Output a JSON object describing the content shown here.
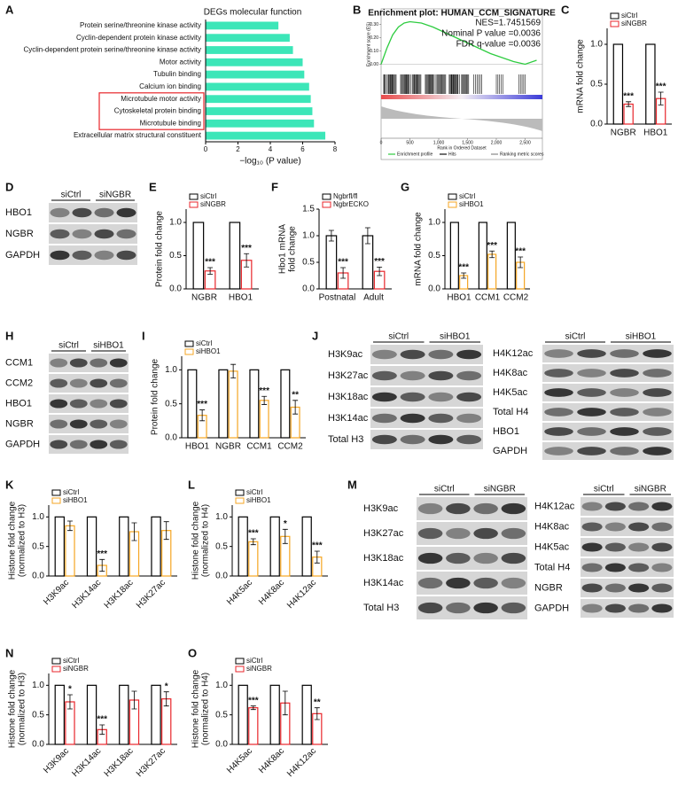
{
  "chart_data": [
    {
      "type": "barh",
      "label": "A",
      "title": "DEGs molecular function",
      "categories": [
        "Protein serine/threonine kinase activity",
        "Cyclin-dependent protein kinase activity",
        "Cyclin-dependent protein serine/threonine kinase activity",
        "Motor activity",
        "Tubulin binding",
        "Calcium ion binding",
        "Microtubule motor activity",
        "Cytoskeletal protein binding",
        "Microtubule binding",
        "Extracellular matrix structural constituent"
      ],
      "values": [
        4.5,
        5.2,
        5.4,
        6.0,
        6.1,
        6.4,
        6.5,
        6.6,
        6.7,
        7.4
      ],
      "color": "#3ce6b8",
      "highlight": [
        "Microtubule motor activity",
        "Cytoskeletal protein binding",
        "Microtubule binding"
      ],
      "highlight_color": "#e8262b",
      "xlim": [
        0,
        8
      ],
      "xticks": [
        0,
        2,
        4,
        6,
        8
      ],
      "xlabel": "−log₁₀ (P value)"
    },
    {
      "type": "gsea",
      "label": "B",
      "title": "Enrichment plot: HUMAN_CCM_SIGNATURE",
      "annotations": [
        "NES=1.7451569",
        "Nominal P value =0.0036",
        "FDR q-value =0.0036"
      ],
      "x": [
        0,
        100,
        200,
        300,
        400,
        500,
        700,
        900,
        1100,
        1300,
        1500,
        1700,
        1900,
        2100,
        2300,
        2500,
        2700
      ],
      "y": [
        0,
        0.12,
        0.22,
        0.28,
        0.31,
        0.32,
        0.31,
        0.28,
        0.24,
        0.2,
        0.16,
        0.12,
        0.08,
        0.05,
        0.02,
        0.0,
        0.03
      ],
      "color": "#2ecc40",
      "xlim": [
        0,
        2800
      ],
      "xticks": [
        0,
        500,
        {
          "value": 1000,
          "label": "1,000"
        },
        {
          "value": 1500,
          "label": "1,500"
        },
        {
          "value": 2000,
          "label": "2,000"
        },
        {
          "value": 2500,
          "label": "2,500"
        }
      ],
      "ylim": [
        -0.05,
        0.35
      ],
      "yticks": [
        {
          "value": 0,
          "label": "0.00"
        },
        {
          "value": 0.1,
          "label": "0.10"
        },
        {
          "value": 0.2,
          "label": "0.20"
        },
        {
          "value": 0.3,
          "label": "0.30"
        }
      ],
      "ylabel": "Enrichment score (ES)",
      "xlabel": "Rank in Ordered Dataset",
      "legend": [
        "Enrichment profile",
        "Hits",
        "Ranking metric scores"
      ]
    },
    {
      "type": "bar",
      "label": "C",
      "ylabel": [
        "mRNA fold change"
      ],
      "categories": [
        "NGBR",
        "HBO1"
      ],
      "series": [
        {
          "name": "siCtrl",
          "color": "#000000",
          "values": [
            1,
            1
          ]
        },
        {
          "name": "siNGBR",
          "color": "#e8262b",
          "values": [
            0.25,
            0.32
          ],
          "errors": [
            0.03,
            0.08
          ],
          "annotations": [
            "***",
            "***"
          ]
        }
      ],
      "ylim": [
        0,
        1.2
      ],
      "yticks": [
        {
          "value": 0,
          "label": "0.0"
        },
        {
          "value": 0.5,
          "label": "0.5"
        },
        {
          "value": 1,
          "label": "1.0"
        }
      ]
    },
    {
      "type": "bar",
      "label": "E",
      "ylabel": [
        "Protein fold change"
      ],
      "categories": [
        "NGBR",
        "HBO1"
      ],
      "series": [
        {
          "name": "siCtrl",
          "color": "#000000",
          "values": [
            1,
            1
          ]
        },
        {
          "name": "siNGBR",
          "color": "#e8262b",
          "values": [
            0.27,
            0.43
          ],
          "errors": [
            0.05,
            0.1
          ],
          "annotations": [
            "***",
            "***"
          ]
        }
      ],
      "ylim": [
        0,
        1.2
      ],
      "yticks": [
        {
          "value": 0,
          "label": "0.0"
        },
        {
          "value": 0.5,
          "label": "0.5"
        },
        {
          "value": 1,
          "label": "1.0"
        }
      ]
    },
    {
      "type": "bar",
      "label": "F",
      "ylabel": [
        "Hbo1 mRNA",
        "fold change"
      ],
      "categories": [
        "Postnatal",
        "Adult"
      ],
      "series": [
        {
          "name": "Ngbrfl/fl",
          "color": "#000000",
          "values": [
            1,
            1
          ],
          "errors": [
            0.1,
            0.15
          ]
        },
        {
          "name": "NgbrECKO",
          "color": "#e8262b",
          "values": [
            0.3,
            0.33
          ],
          "errors": [
            0.1,
            0.08
          ],
          "annotations": [
            "***",
            "***"
          ]
        }
      ],
      "ylim": [
        0,
        1.5
      ],
      "yticks": [
        {
          "value": 0,
          "label": "0.0"
        },
        {
          "value": 0.5,
          "label": "0.5"
        },
        {
          "value": 1,
          "label": "1.0"
        },
        {
          "value": 1.5,
          "label": "1.5"
        }
      ]
    },
    {
      "type": "bar",
      "label": "G",
      "ylabel": [
        "mRNA fold change"
      ],
      "categories": [
        "HBO1",
        "CCM1",
        "CCM2"
      ],
      "series": [
        {
          "name": "siCtrl",
          "color": "#000000",
          "values": [
            1,
            1,
            1
          ]
        },
        {
          "name": "siHBO1",
          "color": "#f5a623",
          "values": [
            0.2,
            0.52,
            0.4
          ],
          "errors": [
            0.04,
            0.05,
            0.08
          ],
          "annotations": [
            "***",
            "***",
            "***"
          ]
        }
      ],
      "ylim": [
        0,
        1.2
      ],
      "yticks": [
        {
          "value": 0,
          "label": "0.0"
        },
        {
          "value": 0.5,
          "label": "0.5"
        },
        {
          "value": 1,
          "label": "1.0"
        }
      ]
    },
    {
      "type": "bar",
      "label": "I",
      "ylabel": [
        "Protein fold change"
      ],
      "categories": [
        "HBO1",
        "NGBR",
        "CCM1",
        "CCM2"
      ],
      "series": [
        {
          "name": "siCtrl",
          "color": "#000000",
          "values": [
            1,
            1,
            1,
            1
          ]
        },
        {
          "name": "siHBO1",
          "color": "#f5a623",
          "values": [
            0.33,
            0.98,
            0.55,
            0.45
          ],
          "errors": [
            0.08,
            0.1,
            0.06,
            0.1
          ],
          "annotations": [
            "***",
            null,
            "***",
            "**"
          ]
        }
      ],
      "ylim": [
        0,
        1.2
      ],
      "yticks": [
        {
          "value": 0,
          "label": "0.0"
        },
        {
          "value": 0.5,
          "label": "0.5"
        },
        {
          "value": 1,
          "label": "1.0"
        }
      ]
    },
    {
      "type": "bar",
      "label": "K",
      "ylabel": [
        "Histone fold change",
        "(normalized to H3)"
      ],
      "categories": [
        "H3K9ac",
        "H3K14ac",
        "H3K18ac",
        "H3K27ac"
      ],
      "series": [
        {
          "name": "siCtrl",
          "color": "#000000",
          "values": [
            1,
            1,
            1,
            1
          ]
        },
        {
          "name": "siHBO1",
          "color": "#f5a623",
          "values": [
            0.85,
            0.18,
            0.75,
            0.77
          ],
          "errors": [
            0.08,
            0.1,
            0.15,
            0.15
          ],
          "annotations": [
            null,
            "***",
            null,
            null
          ]
        }
      ],
      "ylim": [
        0,
        1.2
      ],
      "yticks": [
        {
          "value": 0,
          "label": "0.0"
        },
        {
          "value": 0.5,
          "label": "0.5"
        },
        {
          "value": 1,
          "label": "1.0"
        }
      ],
      "x_label_rotation": -45
    },
    {
      "type": "bar",
      "label": "L",
      "ylabel": [
        "Histone fold change",
        "(normalized to H4)"
      ],
      "categories": [
        "H4K5ac",
        "H4K8ac",
        "H4K12ac"
      ],
      "series": [
        {
          "name": "siCtrl",
          "color": "#000000",
          "values": [
            1,
            1,
            1
          ]
        },
        {
          "name": "siHBO1",
          "color": "#f5a623",
          "values": [
            0.58,
            0.67,
            0.32
          ],
          "errors": [
            0.05,
            0.12,
            0.1
          ],
          "annotations": [
            "***",
            "*",
            "***"
          ]
        }
      ],
      "ylim": [
        0,
        1.2
      ],
      "yticks": [
        {
          "value": 0,
          "label": "0.0"
        },
        {
          "value": 0.5,
          "label": "0.5"
        },
        {
          "value": 1,
          "label": "1.0"
        }
      ],
      "x_label_rotation": -45
    },
    {
      "type": "bar",
      "label": "N",
      "ylabel": [
        "Histone fold change",
        "(normalized to H3)"
      ],
      "categories": [
        "H3K9ac",
        "H3K14ac",
        "H3K18ac",
        "H3K27ac"
      ],
      "series": [
        {
          "name": "siCtrl",
          "color": "#000000",
          "values": [
            1,
            1,
            1,
            1
          ]
        },
        {
          "name": "siNGBR",
          "color": "#e8262b",
          "values": [
            0.72,
            0.25,
            0.75,
            0.77
          ],
          "errors": [
            0.12,
            0.08,
            0.15,
            0.12
          ],
          "annotations": [
            "*",
            "***",
            null,
            "*"
          ]
        }
      ],
      "ylim": [
        0,
        1.2
      ],
      "yticks": [
        {
          "value": 0,
          "label": "0.0"
        },
        {
          "value": 0.5,
          "label": "0.5"
        },
        {
          "value": 1,
          "label": "1.0"
        }
      ],
      "x_label_rotation": -45
    },
    {
      "type": "bar",
      "label": "O",
      "ylabel": [
        "Histone fold change",
        "(normalized to H4)"
      ],
      "categories": [
        "H4K5ac",
        "H4K8ac",
        "H4K12ac"
      ],
      "series": [
        {
          "name": "siCtrl",
          "color": "#000000",
          "values": [
            1,
            1,
            1
          ]
        },
        {
          "name": "siNGBR",
          "color": "#e8262b",
          "values": [
            0.62,
            0.7,
            0.52
          ],
          "errors": [
            0.03,
            0.2,
            0.1
          ],
          "annotations": [
            "***",
            null,
            "**"
          ]
        }
      ],
      "ylim": [
        0,
        1.2
      ],
      "yticks": [
        {
          "value": 0,
          "label": "0.0"
        },
        {
          "value": 0.5,
          "label": "0.5"
        },
        {
          "value": 1,
          "label": "1.0"
        }
      ],
      "x_label_rotation": -45
    }
  ],
  "blots": [
    {
      "label": "D",
      "groups": [
        "siCtrl",
        "siNGBR"
      ],
      "rows": [
        "HBO1",
        "NGBR",
        "GAPDH"
      ]
    },
    {
      "label": "H",
      "groups": [
        "siCtrl",
        "siHBO1"
      ],
      "rows": [
        "CCM1",
        "CCM2",
        "HBO1",
        "NGBR",
        "GAPDH"
      ]
    },
    {
      "label": "J",
      "groups": [
        "siCtrl",
        "siHBO1"
      ],
      "rows": [
        "H3K9ac",
        "H3K27ac",
        "H3K18ac",
        "H3K14ac",
        "Total H3"
      ]
    },
    {
      "groups": [
        "siCtrl",
        "siHBO1"
      ],
      "rows": [
        "H4K12ac",
        "H4K8ac",
        "H4K5ac",
        "Total H4",
        "HBO1",
        "GAPDH"
      ]
    },
    {
      "label": "M",
      "groups": [
        "siCtrl",
        "siNGBR"
      ],
      "rows": [
        "H3K9ac",
        "H3K27ac",
        "H3K18ac",
        "H3K14ac",
        "Total H3"
      ]
    },
    {
      "groups": [
        "siCtrl",
        "siNGBR"
      ],
      "rows": [
        "H4K12ac",
        "H4K8ac",
        "H4K5ac",
        "Total H4",
        "NGBR",
        "GAPDH"
      ]
    }
  ]
}
